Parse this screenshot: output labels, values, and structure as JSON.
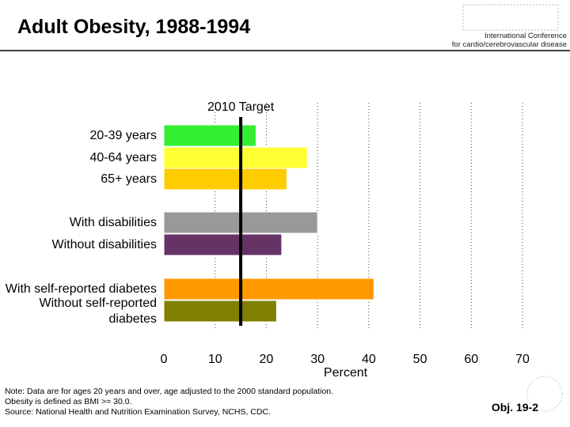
{
  "chart_data": {
    "type": "bar",
    "orientation": "horizontal",
    "title": "Adult Obesity, 1988-1994",
    "categories": [
      "20-39 years",
      "40-64 years",
      "65+ years",
      "With disabilities",
      "Without disabilities",
      "With self-reported diabetes",
      "Without self-reported diabetes"
    ],
    "values": [
      18,
      28,
      24,
      30,
      23,
      41,
      22
    ],
    "colors": [
      "#33ee33",
      "#ffff33",
      "#ffcc00",
      "#999999",
      "#663366",
      "#ff9900",
      "#808000"
    ],
    "xlim": [
      0,
      70
    ],
    "xticks": [
      0,
      10,
      20,
      30,
      40,
      50,
      60,
      70
    ],
    "xlabel": "Percent",
    "grid": true,
    "target": {
      "label": "2010 Target",
      "value": 15
    }
  },
  "header": {
    "conference": [
      "International Conference",
      "for cardio/cerebrovascular disease"
    ]
  },
  "notes": [
    "Note: Data are for ages 20 years and over, age adjusted to the 2000 standard population.",
    "Obesity is defined as BMI >= 30.0.",
    "Source: National Health and Nutrition Examination Survey, NCHS, CDC."
  ],
  "footer": "Obj. 19-2"
}
